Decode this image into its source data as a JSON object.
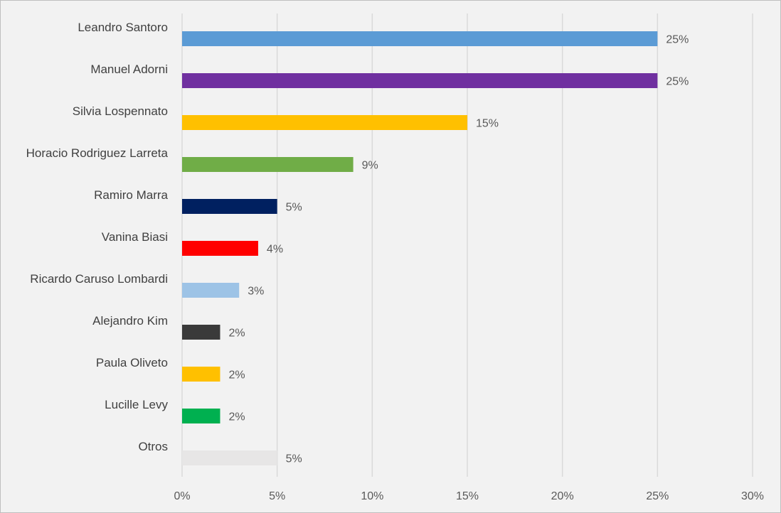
{
  "chart_data": {
    "type": "bar",
    "orientation": "horizontal",
    "categories": [
      "Leandro Santoro",
      "Manuel Adorni",
      "Silvia Lospennato",
      "Horacio Rodriguez Larreta",
      "Ramiro Marra",
      "Vanina Biasi",
      "Ricardo Caruso Lombardi",
      "Alejandro Kim",
      "Paula Oliveto",
      "Lucille Levy",
      "Otros"
    ],
    "values": [
      25,
      25,
      15,
      9,
      5,
      4,
      3,
      2,
      2,
      2,
      5
    ],
    "value_labels": [
      "25%",
      "25%",
      "15%",
      "9%",
      "5%",
      "4%",
      "3%",
      "2%",
      "2%",
      "2%",
      "5%"
    ],
    "colors": [
      "#5b9bd5",
      "#7030a0",
      "#ffc000",
      "#70ad47",
      "#002060",
      "#ff0000",
      "#9dc3e6",
      "#3a3a3a",
      "#ffc000",
      "#00b050",
      "#e7e6e6"
    ],
    "x_ticks": [
      0,
      5,
      10,
      15,
      20,
      25,
      30
    ],
    "x_tick_labels": [
      "0%",
      "5%",
      "10%",
      "15%",
      "20%",
      "25%",
      "30%"
    ],
    "xlim": [
      0,
      30
    ],
    "title": "",
    "xlabel": "",
    "ylabel": "",
    "grid": true,
    "legend": "none"
  }
}
